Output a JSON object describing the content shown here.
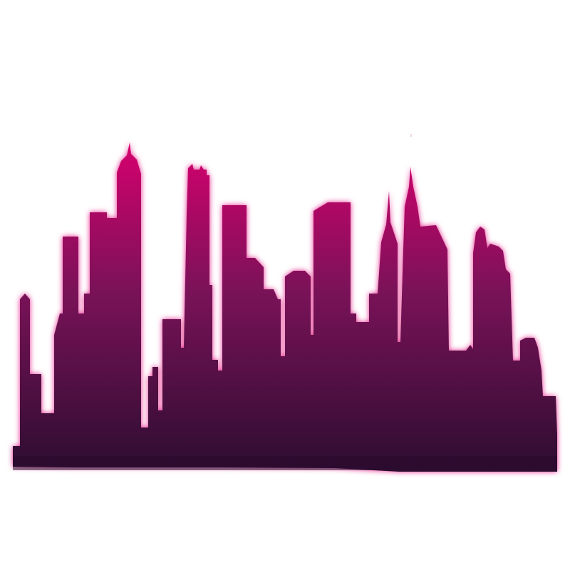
{
  "scene": {
    "subject": "city-skyline-silhouette",
    "background_color": "#ffffff",
    "gradient_top_color": "#d6006e",
    "gradient_bottom_color": "#2c0d30",
    "glow_color": "#e0107a"
  }
}
